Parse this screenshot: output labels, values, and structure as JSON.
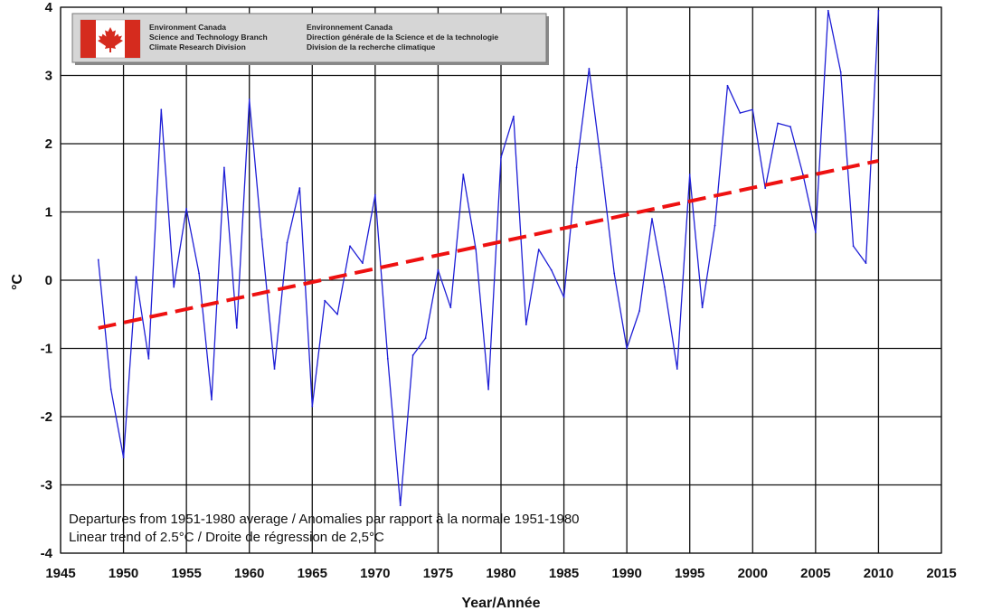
{
  "chart_data": {
    "type": "line",
    "title": "",
    "xlabel": "Year/Année",
    "ylabel": "°C",
    "xlim": [
      1945,
      2015
    ],
    "ylim": [
      -4,
      4
    ],
    "x_ticks": [
      1945,
      1950,
      1955,
      1960,
      1965,
      1970,
      1975,
      1980,
      1985,
      1990,
      1995,
      2000,
      2005,
      2010,
      2015
    ],
    "y_ticks": [
      -4,
      -3,
      -2,
      -1,
      0,
      1,
      2,
      3,
      4
    ],
    "grid": true,
    "series": [
      {
        "color": "#1f1fd6",
        "x": [
          1948,
          1949,
          1950,
          1951,
          1952,
          1953,
          1954,
          1955,
          1956,
          1957,
          1958,
          1959,
          1960,
          1961,
          1962,
          1963,
          1964,
          1965,
          1966,
          1967,
          1968,
          1969,
          1970,
          1971,
          1972,
          1973,
          1974,
          1975,
          1976,
          1977,
          1978,
          1979,
          1980,
          1981,
          1982,
          1983,
          1984,
          1985,
          1986,
          1987,
          1988,
          1989,
          1990,
          1991,
          1992,
          1993,
          1994,
          1995,
          1996,
          1997,
          1998,
          1999,
          2000,
          2001,
          2002,
          2003,
          2004,
          2005,
          2006,
          2007,
          2008,
          2009,
          2010
        ],
        "y": [
          0.3,
          -1.6,
          -2.6,
          0.05,
          -1.15,
          2.5,
          -0.1,
          1.05,
          0.1,
          -1.75,
          1.65,
          -0.7,
          2.65,
          0.6,
          -1.3,
          0.55,
          1.35,
          -1.85,
          -0.3,
          -0.5,
          0.5,
          0.25,
          1.25,
          -1.15,
          -3.3,
          -1.1,
          -0.85,
          0.15,
          -0.4,
          1.55,
          0.45,
          -1.6,
          1.8,
          2.4,
          -0.65,
          0.45,
          0.15,
          -0.25,
          1.65,
          3.1,
          1.65,
          0.1,
          -1.0,
          -0.45,
          0.9,
          -0.1,
          -1.3,
          1.55,
          -0.4,
          0.8,
          2.85,
          2.45,
          2.5,
          1.35,
          2.3,
          2.25,
          1.55,
          0.7,
          3.95,
          3.05,
          0.5,
          0.25,
          3.95
        ]
      },
      {
        "color": "#ee1111",
        "style": "dashed",
        "x": [
          1948,
          2010
        ],
        "y": [
          -0.7,
          1.75
        ]
      }
    ],
    "annotations": [
      "Departures from 1951-1980 average / Anomalies par rapport à la normale 1951-1980",
      "Linear trend of 2.5°C / Droite de régression de 2,5°C"
    ]
  },
  "logo": {
    "english": [
      "Environment Canada",
      "Science and Technology Branch",
      "Climate Research Division"
    ],
    "french": [
      "Environnement Canada",
      "Direction générale de la Science et de la technologie",
      "Division de la recherche climatique"
    ],
    "flag_red": "#d52b1e"
  }
}
